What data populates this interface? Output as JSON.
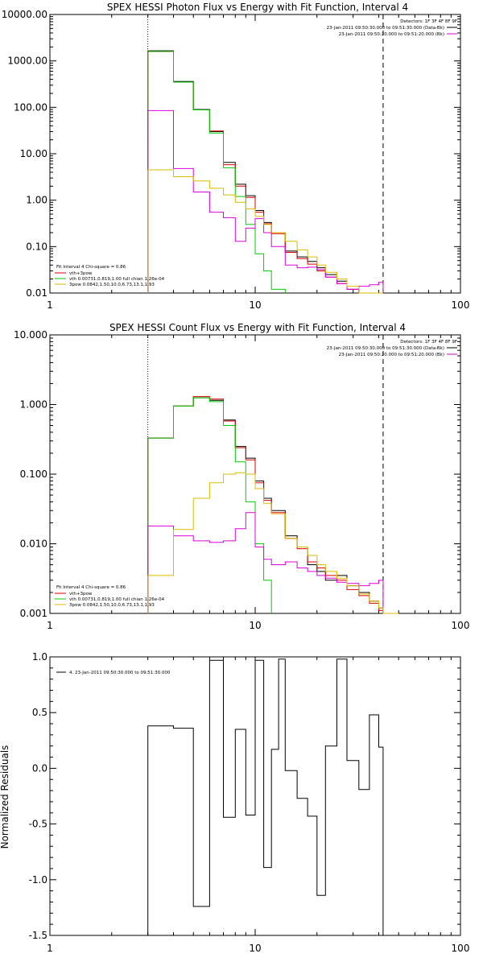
{
  "chart_data": [
    {
      "type": "line",
      "title": "SPEX HESSI Photon Flux vs Energy with Fit Function, Interval 4",
      "xlabel": "",
      "ylabel": "",
      "xscale": "log",
      "yscale": "log",
      "xlim": [
        1,
        100
      ],
      "ylim": [
        0.01,
        10000
      ],
      "x_ticks": [
        "1",
        "10",
        "100"
      ],
      "y_ticks": [
        "0.01",
        "0.10",
        "1.00",
        "10.00",
        "100.00",
        "1000.00",
        "10000.00"
      ],
      "vlines": [
        {
          "x": 3,
          "style": "dotted"
        },
        {
          "x": 42,
          "style": "dashed"
        }
      ],
      "legend_top": {
        "position": "top-right",
        "entries": [
          "Detectors: 1F 3F 4F 8F 9F",
          "23-Jan-2011 09:50:30.000 to 09:51:30.000 (Data-Bk)",
          "23-Jan-2011 09:50:20.000 to 09:51:20.000 (Bk)"
        ]
      },
      "legend_bottom": {
        "position": "bottom-left",
        "entries": [
          "Fit Interval 4   Chi-square = 0.86",
          "vth+3pow",
          "vth 0.00731,0.819,1.00   full chian 1.26e-04",
          "3pow 0.0842,1.50,10.0,6.73,13.1,1.93"
        ]
      },
      "series": [
        {
          "name": "",
          "color": "#000000",
          "edges": [
            3,
            4,
            5,
            6,
            7,
            8,
            9,
            10,
            11,
            12,
            14,
            16,
            18,
            20,
            22,
            25,
            28,
            32,
            36,
            40,
            42
          ],
          "values": [
            1650,
            360,
            90,
            30,
            6.5,
            2.2,
            1.25,
            0.6,
            0.33,
            0.2,
            0.08,
            0.06,
            0.048,
            0.035,
            0.025,
            0.018,
            0.012,
            0.01,
            0.009,
            0.01
          ]
        },
        {
          "name": "",
          "color": "#dd0000",
          "edges": [
            3,
            4,
            5,
            6,
            7,
            8,
            9,
            10,
            11,
            12,
            14,
            16,
            18,
            20,
            22,
            25,
            28,
            32,
            36,
            40,
            42
          ],
          "values": [
            1600,
            350,
            88,
            31,
            5.8,
            2.0,
            1.15,
            0.55,
            0.31,
            0.19,
            0.075,
            0.055,
            0.042,
            0.03,
            0.022,
            0.016,
            0.012,
            0.01,
            0.009,
            0.009
          ]
        },
        {
          "name": "",
          "color": "#00cc00",
          "edges": [
            3,
            4,
            5,
            6,
            7,
            8,
            9,
            10,
            11,
            12,
            14
          ],
          "values": [
            1600,
            350,
            88,
            28,
            5,
            1.2,
            0.3,
            0.07,
            0.03,
            0.012
          ]
        },
        {
          "name": "",
          "color": "#dd00dd",
          "edges": [
            3,
            4,
            5,
            6,
            7,
            8,
            9,
            10,
            11,
            12,
            14,
            16,
            18,
            20,
            22,
            25,
            28,
            32,
            36,
            40,
            42
          ],
          "values": [
            85,
            4.8,
            1.5,
            0.55,
            0.42,
            0.13,
            0.25,
            0.4,
            0.2,
            0.1,
            0.04,
            0.035,
            0.036,
            0.032,
            0.022,
            0.016,
            0.012,
            0.014,
            0.015,
            0.017
          ]
        },
        {
          "name": "",
          "color": "#ddbb00",
          "edges": [
            3,
            4,
            5,
            6,
            7,
            8,
            9,
            10,
            11,
            12,
            14,
            16,
            18,
            20,
            22,
            25,
            28,
            32,
            36,
            40,
            42
          ],
          "values": [
            4.5,
            3.2,
            2.6,
            1.8,
            1.3,
            0.9,
            0.65,
            0.45,
            0.3,
            0.2,
            0.13,
            0.085,
            0.06,
            0.04,
            0.028,
            0.02,
            0.014,
            0.01,
            0.008,
            0.006
          ]
        }
      ]
    },
    {
      "type": "line",
      "title": "SPEX HESSI Count Flux vs Energy with Fit Function, Interval 4",
      "xlabel": "",
      "ylabel": "",
      "xscale": "log",
      "yscale": "log",
      "xlim": [
        1,
        100
      ],
      "ylim": [
        0.001,
        10
      ],
      "x_ticks": [
        "1",
        "10",
        "100"
      ],
      "y_ticks": [
        "0.001",
        "0.010",
        "0.100",
        "1.000",
        "10.000"
      ],
      "vlines": [
        {
          "x": 3,
          "style": "dotted"
        },
        {
          "x": 42,
          "style": "dashed"
        }
      ],
      "legend_top": {
        "position": "top-right",
        "entries": [
          "Detectors: 1F 3F 4F 8F 9F",
          "23-Jan-2011 09:50:30.000 to 09:51:30.000 (Data-Bk)",
          "23-Jan-2011 09:50:20.000 to 09:51:20.000 (Bk)"
        ]
      },
      "legend_bottom": {
        "position": "bottom-left",
        "entries": [
          "Fit Interval 4   Chi-square = 0.86",
          "vth+3pow",
          "vth 0.00731,0.819,1.00   full chian 1.26e-04",
          "3pow 0.0842,1.50,10.0,6.73,13.1,1.93"
        ]
      },
      "series": [
        {
          "name": "",
          "color": "#000000",
          "edges": [
            3,
            4,
            5,
            6,
            7,
            8,
            9,
            10,
            11,
            12,
            14,
            16,
            18,
            20,
            22,
            25,
            28,
            32,
            36,
            40,
            42,
            50
          ],
          "values": [
            0.33,
            0.95,
            1.25,
            1.15,
            0.6,
            0.25,
            0.17,
            0.08,
            0.045,
            0.03,
            0.013,
            0.009,
            0.005,
            0.004,
            0.003,
            0.0035,
            0.0025,
            0.002,
            0.0015,
            0.0012,
            0.001
          ]
        },
        {
          "name": "",
          "color": "#dd0000",
          "edges": [
            3,
            4,
            5,
            6,
            7,
            8,
            9,
            10,
            11,
            12,
            14,
            16,
            18,
            20,
            22,
            25,
            28,
            32,
            36,
            40,
            42,
            50
          ],
          "values": [
            0.33,
            0.95,
            1.3,
            1.2,
            0.58,
            0.24,
            0.16,
            0.075,
            0.042,
            0.028,
            0.012,
            0.0085,
            0.0055,
            0.0045,
            0.0035,
            0.003,
            0.0022,
            0.0018,
            0.0014,
            0.0011,
            0.001
          ]
        },
        {
          "name": "",
          "color": "#00cc00",
          "edges": [
            3,
            4,
            5,
            6,
            7,
            8,
            9,
            10,
            11,
            12
          ],
          "values": [
            0.33,
            0.95,
            1.25,
            1.1,
            0.5,
            0.15,
            0.04,
            0.01,
            0.003
          ]
        },
        {
          "name": "",
          "color": "#dd00dd",
          "edges": [
            3,
            4,
            5,
            6,
            7,
            8,
            9,
            10,
            11,
            12,
            14,
            16,
            18,
            20,
            22,
            25,
            28,
            32,
            36,
            40,
            42
          ],
          "values": [
            0.018,
            0.013,
            0.011,
            0.0105,
            0.011,
            0.0165,
            0.028,
            0.009,
            0.006,
            0.005,
            0.0055,
            0.0045,
            0.004,
            0.0035,
            0.0032,
            0.0028,
            0.0027,
            0.0025,
            0.0027,
            0.003
          ]
        },
        {
          "name": "",
          "color": "#ddbb00",
          "edges": [
            3,
            4,
            5,
            6,
            7,
            8,
            9,
            10,
            11,
            12,
            14,
            16,
            18,
            20,
            22,
            25,
            28,
            32,
            36,
            40,
            42,
            50
          ],
          "values": [
            0.0035,
            0.016,
            0.045,
            0.075,
            0.1,
            0.105,
            0.1,
            0.062,
            0.038,
            0.027,
            0.012,
            0.009,
            0.0068,
            0.005,
            0.004,
            0.0032,
            0.0025,
            0.0019,
            0.0015,
            0.0012,
            0.001
          ]
        }
      ]
    },
    {
      "type": "line",
      "title": "",
      "xlabel": "",
      "ylabel": "Normalized Residuals",
      "xscale": "log",
      "yscale": "linear",
      "xlim": [
        1,
        100
      ],
      "ylim": [
        -1.5,
        1.0
      ],
      "x_ticks": [
        "1",
        "10",
        "100"
      ],
      "y_ticks": [
        "-1.5",
        "-1.0",
        "-0.5",
        "0.0",
        "0.5",
        "1.0"
      ],
      "legend": {
        "position": "top-left",
        "entries": [
          "4. 23-Jan-2011 09:50:30.000 to 09:51:30.000"
        ]
      },
      "series": [
        {
          "name": "",
          "color": "#000000",
          "edges": [
            3,
            4,
            5,
            6,
            7,
            8,
            9,
            10,
            11,
            12,
            13,
            14,
            16,
            18,
            20,
            22,
            25,
            28,
            32,
            36,
            40,
            42
          ],
          "values": [
            0.38,
            0.36,
            -1.24,
            0.97,
            -0.44,
            0.35,
            -0.42,
            0.97,
            -0.89,
            0.17,
            0.98,
            -0.02,
            -0.27,
            -0.43,
            -1.14,
            0.2,
            0.98,
            0.07,
            -0.19,
            0.48,
            0.19
          ]
        }
      ]
    }
  ]
}
